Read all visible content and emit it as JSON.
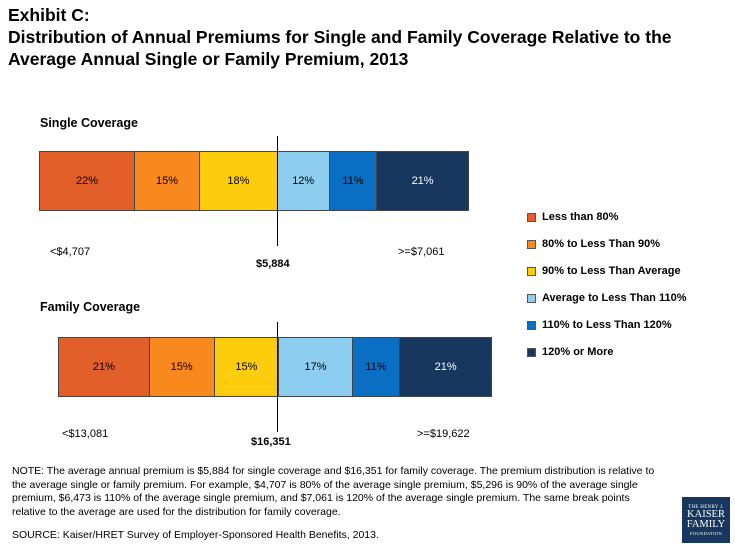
{
  "title": {
    "line1": "Exhibit C:",
    "line2": "Distribution of Annual Premiums for Single and Family Coverage Relative to the Average Annual Single or Family Premium, 2013"
  },
  "colors": {
    "less_than_80": "#e35f2a",
    "80_to_90": "#f7891e",
    "90_to_avg": "#fdcc0d",
    "avg_to_110": "#8dcdef",
    "110_to_120": "#0a6fc2",
    "120_or_more": "#17375e"
  },
  "chart_data": [
    {
      "type": "bar",
      "orientation": "horizontal-stacked",
      "title": "Single Coverage",
      "categories": [
        "Less than 80%",
        "80% to Less Than 90%",
        "90% to Less Than Average",
        "Average to Less Than 110%",
        "110% to Less Than 120%",
        "120% or More"
      ],
      "values": [
        22,
        15,
        18,
        12,
        11,
        21
      ],
      "value_labels": [
        "22%",
        "15%",
        "18%",
        "12%",
        "11%",
        "21%"
      ],
      "low_label": "<$4,707",
      "average_label": "$5,884",
      "high_label": ">=$7,061"
    },
    {
      "type": "bar",
      "orientation": "horizontal-stacked",
      "title": "Family Coverage",
      "categories": [
        "Less than 80%",
        "80% to Less Than 90%",
        "90% to Less Than Average",
        "Average to Less Than 110%",
        "110% to Less Than 120%",
        "120% or More"
      ],
      "values": [
        21,
        15,
        15,
        17,
        11,
        21
      ],
      "value_labels": [
        "21%",
        "15%",
        "15%",
        "17%",
        "11%",
        "21%"
      ],
      "low_label": "<$13,081",
      "average_label": "$16,351",
      "high_label": ">=$19,622"
    }
  ],
  "legend": [
    {
      "label": "Less than 80%",
      "color": "#e35f2a"
    },
    {
      "label": "80% to Less Than 90%",
      "color": "#f7891e"
    },
    {
      "label": "90% to Less Than Average",
      "color": "#fdcc0d"
    },
    {
      "label": "Average to Less Than 110%",
      "color": "#8dcdef"
    },
    {
      "label": "110% to Less Than 120%",
      "color": "#0a6fc2"
    },
    {
      "label": "120% or More",
      "color": "#17375e"
    }
  ],
  "note": "NOTE: The average annual premium is $5,884 for single coverage and $16,351 for family coverage.  The premium distribution is relative to the average single or family premium.  For example, $4,707 is 80% of the average single premium, $5,296 is 90% of the average single premium, $6,473 is 110% of the average single premium, and $7,061 is 120% of the average single premium.  The same break points relative to the average are used for the distribution for family coverage.",
  "source": "SOURCE: Kaiser/HRET Survey of Employer-Sponsored Health Benefits, 2013.",
  "logo": {
    "line1": "THE HENRY J.",
    "line2": "KAISER",
    "line3": "FAMILY",
    "line4": "FOUNDATION"
  }
}
